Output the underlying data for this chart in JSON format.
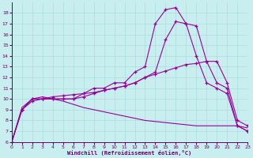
{
  "xlabel": "Windchill (Refroidissement éolien,°C)",
  "bg_color": "#c8eef0",
  "grid_color": "#aadddd",
  "line_color": "#990099",
  "xlim": [
    0,
    23
  ],
  "ylim": [
    6,
    19
  ],
  "xticks": [
    0,
    1,
    2,
    3,
    4,
    5,
    6,
    7,
    8,
    9,
    10,
    11,
    12,
    13,
    14,
    15,
    16,
    17,
    18,
    19,
    20,
    21,
    22,
    23
  ],
  "yticks": [
    6,
    7,
    8,
    9,
    10,
    11,
    12,
    13,
    14,
    15,
    16,
    17,
    18
  ],
  "curve_peak_x": [
    0,
    1,
    2,
    3,
    4,
    5,
    6,
    7,
    8,
    9,
    10,
    11,
    12,
    13,
    14,
    15,
    16,
    17,
    18,
    19,
    20,
    21,
    22,
    23
  ],
  "curve_peak_y": [
    6.0,
    9.0,
    10.0,
    10.0,
    10.0,
    10.0,
    10.0,
    10.5,
    11.0,
    11.0,
    11.5,
    11.5,
    12.5,
    13.0,
    17.0,
    18.3,
    18.5,
    17.0,
    14.0,
    11.5,
    11.0,
    10.5,
    7.5,
    7.0
  ],
  "curve_mid_x": [
    0,
    1,
    2,
    3,
    4,
    5,
    6,
    7,
    8,
    9,
    10,
    11,
    12,
    13,
    14,
    15,
    16,
    17,
    18,
    19,
    20,
    21,
    22,
    23
  ],
  "curve_mid_y": [
    6.0,
    9.0,
    10.0,
    10.0,
    10.0,
    10.0,
    10.0,
    10.2,
    10.5,
    10.8,
    11.0,
    11.2,
    11.5,
    12.0,
    12.5,
    15.5,
    17.2,
    17.0,
    16.8,
    13.5,
    11.5,
    11.0,
    7.5,
    7.0
  ],
  "curve_linear_x": [
    0,
    1,
    2,
    3,
    4,
    5,
    6,
    7,
    8,
    9,
    10,
    11,
    12,
    13,
    14,
    15,
    16,
    17,
    18,
    19,
    20,
    21,
    22,
    23
  ],
  "curve_linear_y": [
    6.0,
    9.0,
    9.8,
    10.0,
    10.2,
    10.3,
    10.4,
    10.5,
    10.6,
    10.8,
    11.0,
    11.2,
    11.5,
    12.0,
    12.3,
    12.6,
    12.9,
    13.2,
    13.3,
    13.5,
    13.5,
    11.5,
    8.0,
    7.5
  ],
  "curve_decline_x": [
    0,
    1,
    2,
    3,
    4,
    5,
    6,
    7,
    8,
    9,
    10,
    11,
    12,
    13,
    14,
    15,
    16,
    17,
    18,
    19,
    20,
    21,
    22,
    23
  ],
  "curve_decline_y": [
    6.0,
    9.2,
    10.0,
    10.2,
    10.0,
    9.8,
    9.5,
    9.2,
    9.0,
    8.8,
    8.6,
    8.4,
    8.2,
    8.0,
    7.9,
    7.8,
    7.7,
    7.6,
    7.5,
    7.5,
    7.5,
    7.5,
    7.5,
    7.3
  ]
}
